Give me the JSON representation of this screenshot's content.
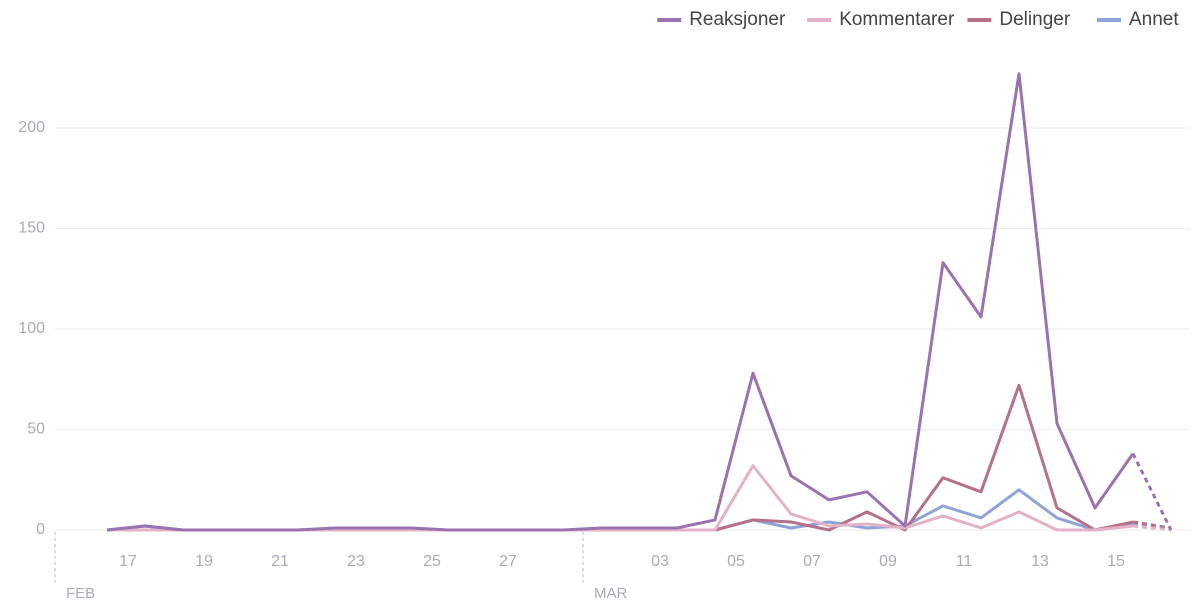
{
  "chart_data": {
    "type": "line",
    "categories": [
      null,
      "17",
      null,
      "19",
      null,
      "21",
      null,
      "23",
      null,
      "25",
      null,
      "27",
      null,
      null,
      null,
      "03",
      null,
      "05",
      null,
      "07",
      null,
      "09",
      null,
      "11",
      null,
      "13",
      null,
      "15",
      null
    ],
    "month_labels": [
      "FEB",
      "MAR"
    ],
    "series": [
      {
        "name": "Reaksjoner",
        "color": "#9b72b0",
        "values": [
          0,
          2,
          0,
          0,
          0,
          0,
          1,
          1,
          1,
          0,
          0,
          0,
          0,
          1,
          1,
          1,
          5,
          78,
          27,
          15,
          19,
          2,
          133,
          106,
          227,
          53,
          11,
          38,
          0
        ]
      },
      {
        "name": "Kommentarer",
        "color": "#e2b3c6",
        "values": [
          0,
          0,
          0,
          0,
          0,
          0,
          0,
          0,
          0,
          0,
          0,
          0,
          0,
          0,
          0,
          0,
          0,
          32,
          8,
          2,
          3,
          1,
          7,
          1,
          9,
          0,
          0,
          2,
          0
        ]
      },
      {
        "name": "Delinger",
        "color": "#b5708a",
        "values": [
          0,
          0,
          0,
          0,
          0,
          0,
          0,
          0,
          0,
          0,
          0,
          0,
          0,
          0,
          0,
          0,
          0,
          5,
          4,
          0,
          9,
          0,
          26,
          19,
          72,
          11,
          0,
          4,
          1
        ]
      },
      {
        "name": "Annet",
        "color": "#8fa3d6",
        "values": [
          0,
          2,
          0,
          0,
          0,
          0,
          0,
          0,
          0,
          0,
          0,
          0,
          0,
          0,
          0,
          0,
          0,
          5,
          1,
          4,
          1,
          2,
          12,
          6,
          20,
          6,
          0,
          3,
          1
        ]
      }
    ],
    "ylim": [
      0,
      230
    ],
    "yticks": [
      0,
      50,
      100,
      150,
      200
    ],
    "grid": true,
    "legend": "top-right",
    "last_segment_dashed": true
  }
}
